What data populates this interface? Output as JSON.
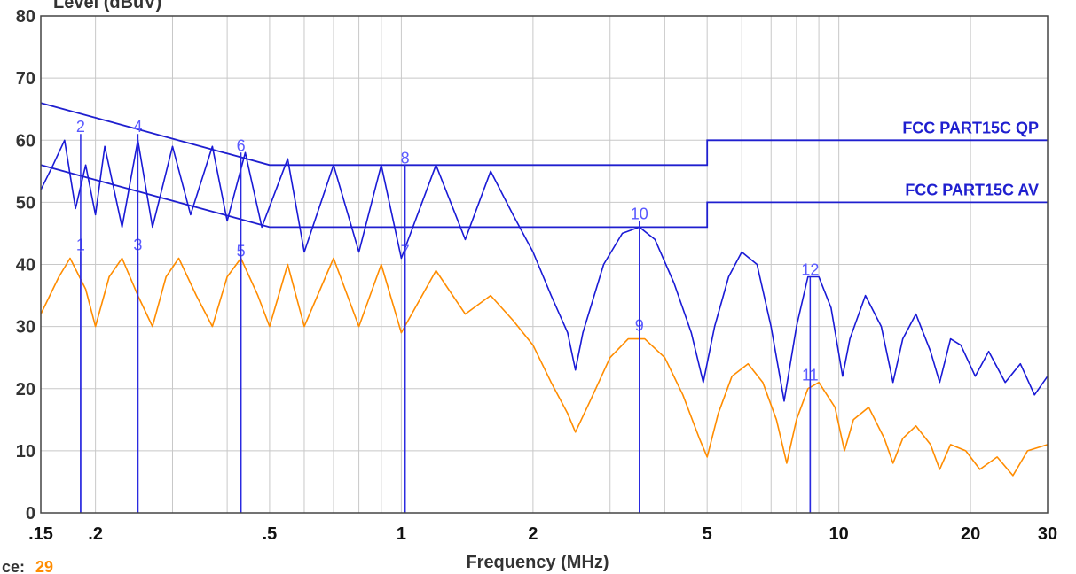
{
  "colors": {
    "qp_trace": "#1a1ad6",
    "av_trace": "#ff8c00",
    "limit": "#1f1fcf",
    "grid": "#c8c8c8",
    "marker": "#2a2ae0",
    "marker_label_qp": "#5a5aff",
    "marker_label_av": "#5a5aff",
    "footer_value": "#ff8c00"
  },
  "header": {
    "ylabel_fragment": "Level (dBuV)"
  },
  "footer": {
    "label_fragment": "ce:",
    "value": "29"
  },
  "chart_data": {
    "type": "line",
    "xlabel": "Frequency (MHz)",
    "ylabel": "Level (dBuV)",
    "x_scale": "log",
    "xlim": [
      0.15,
      30
    ],
    "ylim": [
      0,
      80
    ],
    "grid": true,
    "x_ticks": [
      {
        "value": 0.15,
        "label": ".15"
      },
      {
        "value": 0.2,
        "label": ".2"
      },
      {
        "value": 0.5,
        "label": ".5"
      },
      {
        "value": 1,
        "label": "1"
      },
      {
        "value": 2,
        "label": "2"
      },
      {
        "value": 5,
        "label": "5"
      },
      {
        "value": 10,
        "label": "10"
      },
      {
        "value": 20,
        "label": "20"
      },
      {
        "value": 30,
        "label": "30"
      }
    ],
    "y_ticks": [
      0,
      10,
      20,
      30,
      40,
      50,
      60,
      70,
      80
    ],
    "limits": [
      {
        "name": "FCC PART15C QP",
        "points": [
          [
            0.15,
            66
          ],
          [
            0.5,
            56
          ],
          [
            5,
            56
          ],
          [
            5,
            60
          ],
          [
            30,
            60
          ]
        ]
      },
      {
        "name": "FCC PART15C AV",
        "points": [
          [
            0.15,
            56
          ],
          [
            0.5,
            46
          ],
          [
            5,
            46
          ],
          [
            5,
            50
          ],
          [
            30,
            50
          ]
        ]
      }
    ],
    "series": [
      {
        "role": "qp",
        "points": [
          [
            0.15,
            52
          ],
          [
            0.16,
            56
          ],
          [
            0.17,
            60
          ],
          [
            0.18,
            49
          ],
          [
            0.19,
            56
          ],
          [
            0.2,
            48
          ],
          [
            0.21,
            59
          ],
          [
            0.23,
            46
          ],
          [
            0.25,
            60
          ],
          [
            0.27,
            46
          ],
          [
            0.3,
            59
          ],
          [
            0.33,
            48
          ],
          [
            0.37,
            59
          ],
          [
            0.4,
            47
          ],
          [
            0.44,
            58
          ],
          [
            0.48,
            46
          ],
          [
            0.55,
            57
          ],
          [
            0.6,
            42
          ],
          [
            0.7,
            56
          ],
          [
            0.8,
            42
          ],
          [
            0.9,
            56
          ],
          [
            1.0,
            41
          ],
          [
            1.2,
            56
          ],
          [
            1.4,
            44
          ],
          [
            1.6,
            55
          ],
          [
            1.8,
            48
          ],
          [
            2.0,
            42
          ],
          [
            2.2,
            35
          ],
          [
            2.4,
            29
          ],
          [
            2.5,
            23
          ],
          [
            2.6,
            29
          ],
          [
            2.9,
            40
          ],
          [
            3.2,
            45
          ],
          [
            3.5,
            46
          ],
          [
            3.8,
            44
          ],
          [
            4.2,
            37
          ],
          [
            4.6,
            29
          ],
          [
            4.9,
            21
          ],
          [
            5.2,
            30
          ],
          [
            5.6,
            38
          ],
          [
            6.0,
            42
          ],
          [
            6.5,
            40
          ],
          [
            7.0,
            30
          ],
          [
            7.5,
            18
          ],
          [
            8.0,
            30
          ],
          [
            8.5,
            38
          ],
          [
            9.0,
            38
          ],
          [
            9.6,
            33
          ],
          [
            10.2,
            22
          ],
          [
            10.6,
            28
          ],
          [
            11.5,
            35
          ],
          [
            12.5,
            30
          ],
          [
            13.3,
            21
          ],
          [
            14,
            28
          ],
          [
            15,
            32
          ],
          [
            16.2,
            26
          ],
          [
            17,
            21
          ],
          [
            18,
            28
          ],
          [
            19,
            27
          ],
          [
            20.5,
            22
          ],
          [
            22,
            26
          ],
          [
            24,
            21
          ],
          [
            26,
            24
          ],
          [
            28,
            19
          ],
          [
            30,
            22
          ]
        ]
      },
      {
        "role": "av",
        "points": [
          [
            0.15,
            32
          ],
          [
            0.165,
            38
          ],
          [
            0.175,
            41
          ],
          [
            0.19,
            36
          ],
          [
            0.2,
            30
          ],
          [
            0.215,
            38
          ],
          [
            0.23,
            41
          ],
          [
            0.25,
            35
          ],
          [
            0.27,
            30
          ],
          [
            0.29,
            38
          ],
          [
            0.31,
            41
          ],
          [
            0.34,
            35
          ],
          [
            0.37,
            30
          ],
          [
            0.4,
            38
          ],
          [
            0.43,
            41
          ],
          [
            0.47,
            35
          ],
          [
            0.5,
            30
          ],
          [
            0.55,
            40
          ],
          [
            0.6,
            30
          ],
          [
            0.7,
            41
          ],
          [
            0.8,
            30
          ],
          [
            0.9,
            40
          ],
          [
            1.0,
            29
          ],
          [
            1.2,
            39
          ],
          [
            1.4,
            32
          ],
          [
            1.6,
            35
          ],
          [
            1.8,
            31
          ],
          [
            2.0,
            27
          ],
          [
            2.2,
            21
          ],
          [
            2.4,
            16
          ],
          [
            2.5,
            13
          ],
          [
            2.7,
            18
          ],
          [
            3.0,
            25
          ],
          [
            3.3,
            28
          ],
          [
            3.6,
            28
          ],
          [
            4.0,
            25
          ],
          [
            4.4,
            19
          ],
          [
            4.8,
            12
          ],
          [
            5.0,
            9
          ],
          [
            5.3,
            16
          ],
          [
            5.7,
            22
          ],
          [
            6.2,
            24
          ],
          [
            6.7,
            21
          ],
          [
            7.2,
            15
          ],
          [
            7.6,
            8
          ],
          [
            8.0,
            15
          ],
          [
            8.5,
            20
          ],
          [
            9.0,
            21
          ],
          [
            9.8,
            17
          ],
          [
            10.3,
            10
          ],
          [
            10.8,
            15
          ],
          [
            11.7,
            17
          ],
          [
            12.7,
            12
          ],
          [
            13.3,
            8
          ],
          [
            14,
            12
          ],
          [
            15,
            14
          ],
          [
            16.2,
            11
          ],
          [
            17,
            7
          ],
          [
            18,
            11
          ],
          [
            19.5,
            10
          ],
          [
            21,
            7
          ],
          [
            23,
            9
          ],
          [
            25,
            6
          ],
          [
            27,
            10
          ],
          [
            30,
            11
          ]
        ]
      }
    ],
    "markers": [
      {
        "label": "1",
        "x": 0.185,
        "y": 42,
        "trace": "av"
      },
      {
        "label": "2",
        "x": 0.185,
        "y": 61,
        "trace": "qp"
      },
      {
        "label": "3",
        "x": 0.25,
        "y": 42,
        "trace": "av"
      },
      {
        "label": "4",
        "x": 0.25,
        "y": 61,
        "trace": "qp"
      },
      {
        "label": "5",
        "x": 0.43,
        "y": 41,
        "trace": "av"
      },
      {
        "label": "6",
        "x": 0.43,
        "y": 58,
        "trace": "qp"
      },
      {
        "label": "7",
        "x": 1.02,
        "y": 41,
        "trace": "av"
      },
      {
        "label": "8",
        "x": 1.02,
        "y": 56,
        "trace": "qp"
      },
      {
        "label": "9",
        "x": 3.5,
        "y": 29,
        "trace": "av"
      },
      {
        "label": "10",
        "x": 3.5,
        "y": 47,
        "trace": "qp"
      },
      {
        "label": "11",
        "x": 8.6,
        "y": 21,
        "trace": "av"
      },
      {
        "label": "12",
        "x": 8.6,
        "y": 38,
        "trace": "qp"
      }
    ]
  }
}
